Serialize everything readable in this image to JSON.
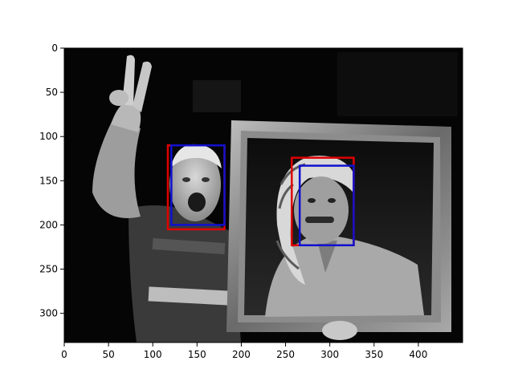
{
  "figure": {
    "background": "#ffffff",
    "image_subject": "grayscale photo: man flashing V-sign holding ornate framed portrait",
    "x_axis": {
      "ticks": [
        "0",
        "50",
        "100",
        "150",
        "200",
        "250",
        "300",
        "350",
        "400"
      ]
    },
    "y_axis": {
      "ticks": [
        "0",
        "50",
        "100",
        "150",
        "200",
        "250",
        "300"
      ]
    }
  },
  "chart_data": {
    "type": "image_with_bounding_boxes",
    "image_size": [
      450,
      333
    ],
    "xlim": [
      0,
      450
    ],
    "ylim": [
      333,
      0
    ],
    "boxes": [
      {
        "color": "#e00000",
        "x0": 117,
        "y0": 110,
        "x1": 181,
        "y1": 205
      },
      {
        "color": "#1010d0",
        "x0": 121,
        "y0": 110,
        "x1": 181,
        "y1": 200
      },
      {
        "color": "#e00000",
        "x0": 257,
        "y0": 124,
        "x1": 327,
        "y1": 223
      },
      {
        "color": "#1010d0",
        "x0": 266,
        "y0": 133,
        "x1": 327,
        "y1": 223
      }
    ]
  }
}
